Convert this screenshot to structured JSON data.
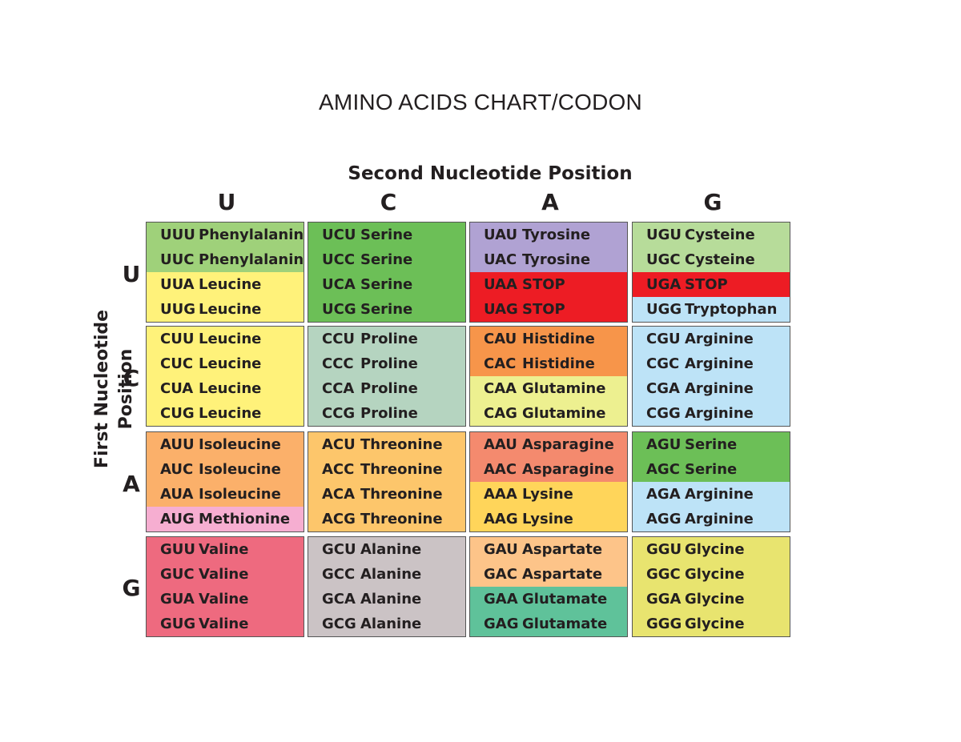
{
  "title": "AMINO ACIDS CHART/CODON",
  "second_position_label": "Second Nucleotide Position",
  "first_position_label": "First Nucleotide Position",
  "columns": [
    "U",
    "C",
    "A",
    "G"
  ],
  "rows": [
    "U",
    "C",
    "A",
    "G"
  ],
  "cells": [
    [
      {
        "lines": [
          {
            "codon": "UUU",
            "amino": "Phenylalanine",
            "color": "#9fd17a"
          },
          {
            "codon": "UUC",
            "amino": "Phenylalanine",
            "color": "#9fd17a"
          },
          {
            "codon": "UUA",
            "amino": "Leucine",
            "color": "#fff27a"
          },
          {
            "codon": "UUG",
            "amino": "Leucine",
            "color": "#fff27a"
          }
        ]
      },
      {
        "lines": [
          {
            "codon": "UCU",
            "amino": "Serine",
            "color": "#6cbf57"
          },
          {
            "codon": "UCC",
            "amino": "Serine",
            "color": "#6cbf57"
          },
          {
            "codon": "UCA",
            "amino": "Serine",
            "color": "#6cbf57"
          },
          {
            "codon": "UCG",
            "amino": "Serine",
            "color": "#6cbf57"
          }
        ]
      },
      {
        "lines": [
          {
            "codon": "UAU",
            "amino": "Tyrosine",
            "color": "#b0a2d3"
          },
          {
            "codon": "UAC",
            "amino": "Tyrosine",
            "color": "#b0a2d3"
          },
          {
            "codon": "UAA",
            "amino": "STOP",
            "color": "#ed1c24"
          },
          {
            "codon": "UAG",
            "amino": "STOP",
            "color": "#ed1c24"
          }
        ]
      },
      {
        "lines": [
          {
            "codon": "UGU",
            "amino": "Cysteine",
            "color": "#b7dc9a"
          },
          {
            "codon": "UGC",
            "amino": "Cysteine",
            "color": "#b7dc9a"
          },
          {
            "codon": "UGA",
            "amino": "STOP",
            "color": "#ed1c24"
          },
          {
            "codon": "UGG",
            "amino": "Tryptophan",
            "color": "#bde3f7"
          }
        ]
      }
    ],
    [
      {
        "lines": [
          {
            "codon": "CUU",
            "amino": "Leucine",
            "color": "#fff27a"
          },
          {
            "codon": "CUC",
            "amino": "Leucine",
            "color": "#fff27a"
          },
          {
            "codon": "CUA",
            "amino": "Leucine",
            "color": "#fff27a"
          },
          {
            "codon": "CUG",
            "amino": "Leucine",
            "color": "#fff27a"
          }
        ]
      },
      {
        "lines": [
          {
            "codon": "CCU",
            "amino": "Proline",
            "color": "#b5d4c0"
          },
          {
            "codon": "CCC",
            "amino": "Proline",
            "color": "#b5d4c0"
          },
          {
            "codon": "CCA",
            "amino": "Proline",
            "color": "#b5d4c0"
          },
          {
            "codon": "CCG",
            "amino": "Proline",
            "color": "#b5d4c0"
          }
        ]
      },
      {
        "lines": [
          {
            "codon": "CAU",
            "amino": "Histidine",
            "color": "#f7954a"
          },
          {
            "codon": "CAC",
            "amino": "Histidine",
            "color": "#f7954a"
          },
          {
            "codon": "CAA",
            "amino": "Glutamine",
            "color": "#edf090"
          },
          {
            "codon": "CAG",
            "amino": "Glutamine",
            "color": "#edf090"
          }
        ]
      },
      {
        "lines": [
          {
            "codon": "CGU",
            "amino": "Arginine",
            "color": "#bde3f7"
          },
          {
            "codon": "CGC",
            "amino": "Arginine",
            "color": "#bde3f7"
          },
          {
            "codon": "CGA",
            "amino": "Arginine",
            "color": "#bde3f7"
          },
          {
            "codon": "CGG",
            "amino": "Arginine",
            "color": "#bde3f7"
          }
        ]
      }
    ],
    [
      {
        "lines": [
          {
            "codon": "AUU",
            "amino": "Isoleucine",
            "color": "#fbb06a"
          },
          {
            "codon": "AUC",
            "amino": "Isoleucine",
            "color": "#fbb06a"
          },
          {
            "codon": "AUA",
            "amino": "Isoleucine",
            "color": "#fbb06a"
          },
          {
            "codon": "AUG",
            "amino": "Methionine",
            "color": "#f6aed1"
          }
        ]
      },
      {
        "lines": [
          {
            "codon": "ACU",
            "amino": "Threonine",
            "color": "#fdc66b"
          },
          {
            "codon": "ACC",
            "amino": "Threonine",
            "color": "#fdc66b"
          },
          {
            "codon": "ACA",
            "amino": "Threonine",
            "color": "#fdc66b"
          },
          {
            "codon": "ACG",
            "amino": "Threonine",
            "color": "#fdc66b"
          }
        ]
      },
      {
        "lines": [
          {
            "codon": "AAU",
            "amino": "Asparagine",
            "color": "#f48a6e"
          },
          {
            "codon": "AAC",
            "amino": "Asparagine",
            "color": "#f48a6e"
          },
          {
            "codon": "AAA",
            "amino": "Lysine",
            "color": "#ffd55a"
          },
          {
            "codon": "AAG",
            "amino": "Lysine",
            "color": "#ffd55a"
          }
        ]
      },
      {
        "lines": [
          {
            "codon": "AGU",
            "amino": "Serine",
            "color": "#6cbf57"
          },
          {
            "codon": "AGC",
            "amino": "Serine",
            "color": "#6cbf57"
          },
          {
            "codon": "AGA",
            "amino": "Arginine",
            "color": "#bde3f7"
          },
          {
            "codon": "AGG",
            "amino": "Arginine",
            "color": "#bde3f7"
          }
        ]
      }
    ],
    [
      {
        "lines": [
          {
            "codon": "GUU",
            "amino": "Valine",
            "color": "#ee6a7f"
          },
          {
            "codon": "GUC",
            "amino": "Valine",
            "color": "#ee6a7f"
          },
          {
            "codon": "GUA",
            "amino": "Valine",
            "color": "#ee6a7f"
          },
          {
            "codon": "GUG",
            "amino": "Valine",
            "color": "#ee6a7f"
          }
        ]
      },
      {
        "lines": [
          {
            "codon": "GCU",
            "amino": "Alanine",
            "color": "#cbc3c5"
          },
          {
            "codon": "GCC",
            "amino": "Alanine",
            "color": "#cbc3c5"
          },
          {
            "codon": "GCA",
            "amino": "Alanine",
            "color": "#cbc3c5"
          },
          {
            "codon": "GCG",
            "amino": "Alanine",
            "color": "#cbc3c5"
          }
        ]
      },
      {
        "lines": [
          {
            "codon": "GAU",
            "amino": "Aspartate",
            "color": "#fdc489"
          },
          {
            "codon": "GAC",
            "amino": "Aspartate",
            "color": "#fdc489"
          },
          {
            "codon": "GAA",
            "amino": "Glutamate",
            "color": "#5fc29a"
          },
          {
            "codon": "GAG",
            "amino": "Glutamate",
            "color": "#5fc29a"
          }
        ]
      },
      {
        "lines": [
          {
            "codon": "GGU",
            "amino": "Glycine",
            "color": "#e8e46f"
          },
          {
            "codon": "GGC",
            "amino": "Glycine",
            "color": "#e8e46f"
          },
          {
            "codon": "GGA",
            "amino": "Glycine",
            "color": "#e8e46f"
          },
          {
            "codon": "GGG",
            "amino": "Glycine",
            "color": "#e8e46f"
          }
        ]
      }
    ]
  ]
}
